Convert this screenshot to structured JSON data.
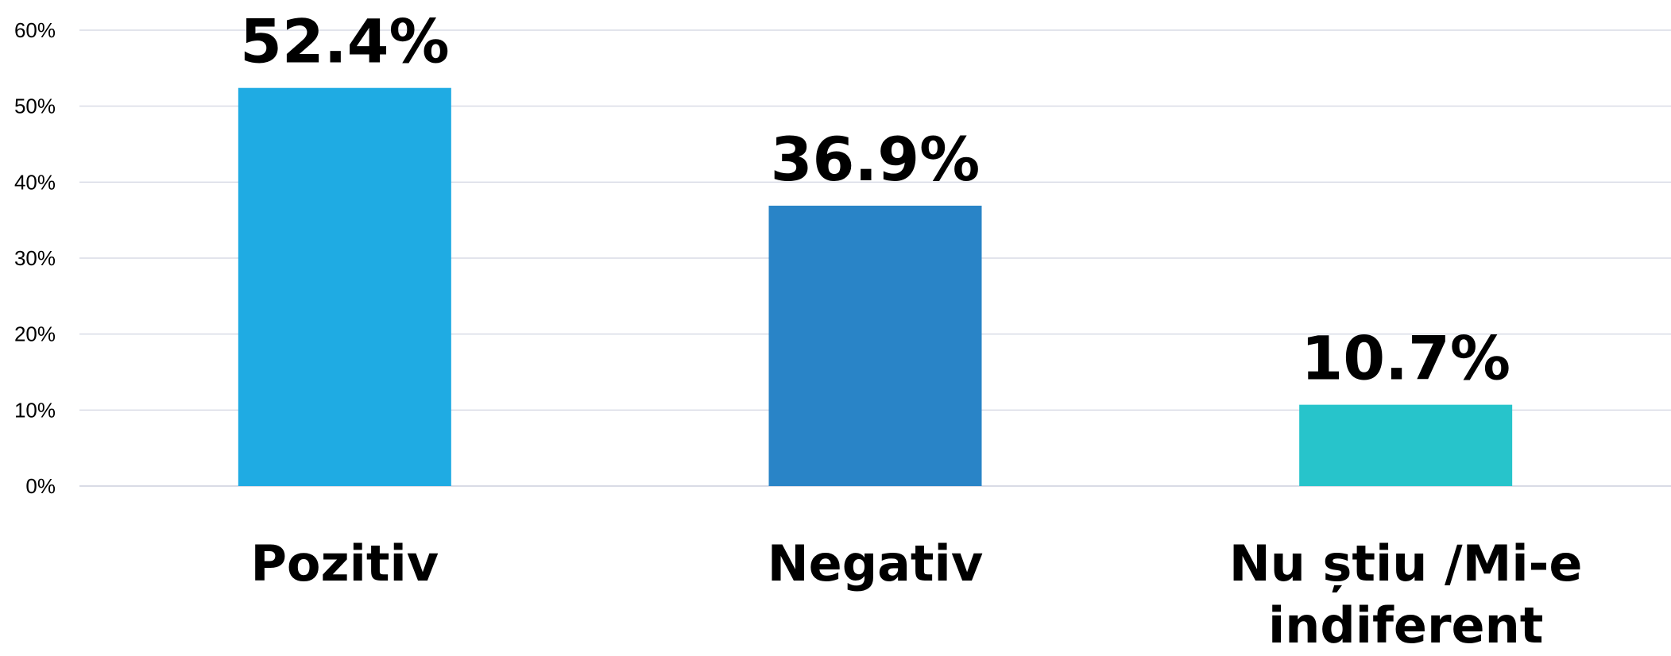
{
  "chart_data": {
    "type": "bar",
    "title": "",
    "xlabel": "",
    "ylabel": "",
    "categories": [
      "Pozitiv",
      "Negativ",
      "Nu știu /Mi-e indiferent"
    ],
    "category_lines": [
      [
        "Pozitiv"
      ],
      [
        "Negativ"
      ],
      [
        "Nu știu /Mi-e",
        "indiferent"
      ]
    ],
    "values": [
      52.4,
      36.9,
      10.7
    ],
    "value_labels": [
      "52.4%",
      "36.9%",
      "10.7%"
    ],
    "colors": [
      "#1fabe3",
      "#2984c7",
      "#27c4cb"
    ],
    "ylim": [
      0,
      60
    ],
    "yticks": [
      0,
      10,
      20,
      30,
      40,
      50,
      60
    ],
    "ytick_labels": [
      "0%",
      "10%",
      "20%",
      "30%",
      "40%",
      "50%",
      "60%"
    ],
    "grid": true,
    "legend": "none"
  }
}
